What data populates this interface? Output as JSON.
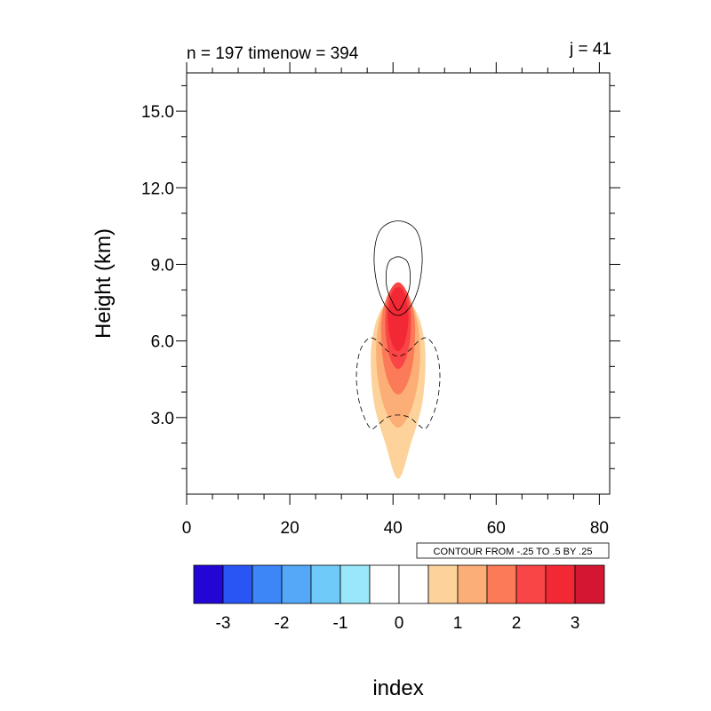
{
  "chart_data": {
    "type": "heatmap",
    "title_left": "n = 197 timenow = 394",
    "title_right": "j = 41",
    "xlabel": "index",
    "ylabel": "Height (km)",
    "xlim": [
      0,
      82
    ],
    "ylim": [
      0,
      16.5
    ],
    "xticks": [
      0,
      20,
      40,
      60,
      80
    ],
    "xtick_labels": [
      "0",
      "20",
      "40",
      "60",
      "80"
    ],
    "yticks": [
      3,
      6,
      9,
      12,
      15
    ],
    "ytick_labels": [
      "3.0",
      "6.0",
      "9.0",
      "12.0",
      "15.0"
    ],
    "contour_info": "CONTOUR FROM -.25 TO .5 BY .25",
    "colorbar": {
      "colors": [
        "#2306d6",
        "#2a55f5",
        "#3c86f7",
        "#54a8f7",
        "#70caf9",
        "#9ae6fb",
        "#ffffff",
        "#ffffff",
        "#fdd39b",
        "#fcae77",
        "#fb7a57",
        "#f94545",
        "#f22834",
        "#d41632"
      ],
      "labels": [
        "-3",
        "-2",
        "-1",
        "0",
        "1",
        "2",
        "3"
      ]
    },
    "filled_regions": [
      {
        "level": 0.5,
        "color": "#fdd39b",
        "polygon": [
          [
            41,
            0.6
          ],
          [
            38.5,
            2.0
          ],
          [
            36.3,
            3.6
          ],
          [
            35.7,
            5.4
          ],
          [
            36.5,
            6.6
          ],
          [
            38.3,
            7.4
          ],
          [
            41,
            7.8
          ],
          [
            43.7,
            7.4
          ],
          [
            45.5,
            6.6
          ],
          [
            46.3,
            5.4
          ],
          [
            45.7,
            3.6
          ],
          [
            43.5,
            2.0
          ]
        ]
      },
      {
        "level": 1.0,
        "color": "#fcae77",
        "polygon": [
          [
            41,
            2.6
          ],
          [
            38.5,
            3.3
          ],
          [
            37.0,
            4.6
          ],
          [
            36.8,
            6.0
          ],
          [
            37.7,
            7.1
          ],
          [
            39.2,
            7.7
          ],
          [
            41,
            7.9
          ],
          [
            42.8,
            7.7
          ],
          [
            44.3,
            7.1
          ],
          [
            45.2,
            6.0
          ],
          [
            45.0,
            4.6
          ],
          [
            43.5,
            3.3
          ]
        ]
      },
      {
        "level": 1.5,
        "color": "#fb7a57",
        "polygon": [
          [
            41,
            3.9
          ],
          [
            39.3,
            4.3
          ],
          [
            38.1,
            5.2
          ],
          [
            37.7,
            6.5
          ],
          [
            38.3,
            7.4
          ],
          [
            39.5,
            8.0
          ],
          [
            41,
            8.2
          ],
          [
            42.5,
            8.0
          ],
          [
            43.7,
            7.4
          ],
          [
            44.3,
            6.5
          ],
          [
            43.9,
            5.2
          ],
          [
            42.7,
            4.3
          ]
        ]
      },
      {
        "level": 2.0,
        "color": "#f94545",
        "polygon": [
          [
            41,
            4.9
          ],
          [
            39.7,
            5.2
          ],
          [
            38.8,
            5.9
          ],
          [
            38.5,
            6.8
          ],
          [
            38.9,
            7.6
          ],
          [
            39.8,
            8.1
          ],
          [
            41,
            8.3
          ],
          [
            42.2,
            8.1
          ],
          [
            43.1,
            7.6
          ],
          [
            43.5,
            6.8
          ],
          [
            43.2,
            5.9
          ],
          [
            42.3,
            5.2
          ]
        ]
      },
      {
        "level": 2.5,
        "color": "#f22834",
        "polygon": [
          [
            41,
            5.6
          ],
          [
            40.0,
            5.8
          ],
          [
            39.3,
            6.3
          ],
          [
            39.0,
            7.0
          ],
          [
            39.4,
            7.6
          ],
          [
            40.1,
            8.0
          ],
          [
            41,
            8.1
          ],
          [
            41.9,
            8.0
          ],
          [
            42.6,
            7.6
          ],
          [
            43.0,
            7.0
          ],
          [
            42.7,
            6.3
          ],
          [
            42.0,
            5.8
          ]
        ]
      }
    ],
    "contour_lines": [
      {
        "level": 0.25,
        "style": "solid",
        "polygon": [
          [
            41,
            7.0
          ],
          [
            38.8,
            7.3
          ],
          [
            37.2,
            8.0
          ],
          [
            36.4,
            8.9
          ],
          [
            36.5,
            9.7
          ],
          [
            37.4,
            10.3
          ],
          [
            39.0,
            10.6
          ],
          [
            41,
            10.7
          ],
          [
            43.0,
            10.6
          ],
          [
            44.6,
            10.3
          ],
          [
            45.5,
            9.7
          ],
          [
            45.6,
            8.9
          ],
          [
            44.8,
            8.0
          ],
          [
            43.2,
            7.3
          ]
        ]
      },
      {
        "level": 0.5,
        "style": "solid",
        "polygon": [
          [
            41,
            7.2
          ],
          [
            39.7,
            7.6
          ],
          [
            38.8,
            8.1
          ],
          [
            38.7,
            8.7
          ],
          [
            39.2,
            9.1
          ],
          [
            40.1,
            9.25
          ],
          [
            41,
            9.3
          ],
          [
            41.9,
            9.25
          ],
          [
            42.8,
            9.1
          ],
          [
            43.3,
            8.7
          ],
          [
            43.2,
            8.1
          ],
          [
            42.3,
            7.6
          ]
        ]
      },
      {
        "level": -0.25,
        "style": "dashed",
        "polygon": [
          [
            35.5,
            2.6
          ],
          [
            33.6,
            3.5
          ],
          [
            32.9,
            4.6
          ],
          [
            33.6,
            5.6
          ],
          [
            35.3,
            6.1
          ],
          [
            37.0,
            6.0
          ],
          [
            39.0,
            5.6
          ],
          [
            41,
            5.4
          ],
          [
            43.0,
            5.6
          ],
          [
            45.0,
            6.0
          ],
          [
            46.7,
            6.1
          ],
          [
            48.4,
            5.6
          ],
          [
            49.1,
            4.6
          ],
          [
            48.4,
            3.5
          ],
          [
            46.5,
            2.6
          ],
          [
            45.0,
            2.7
          ],
          [
            43.2,
            3.0
          ],
          [
            41,
            3.1
          ],
          [
            38.8,
            3.0
          ],
          [
            37.0,
            2.7
          ]
        ]
      }
    ]
  }
}
